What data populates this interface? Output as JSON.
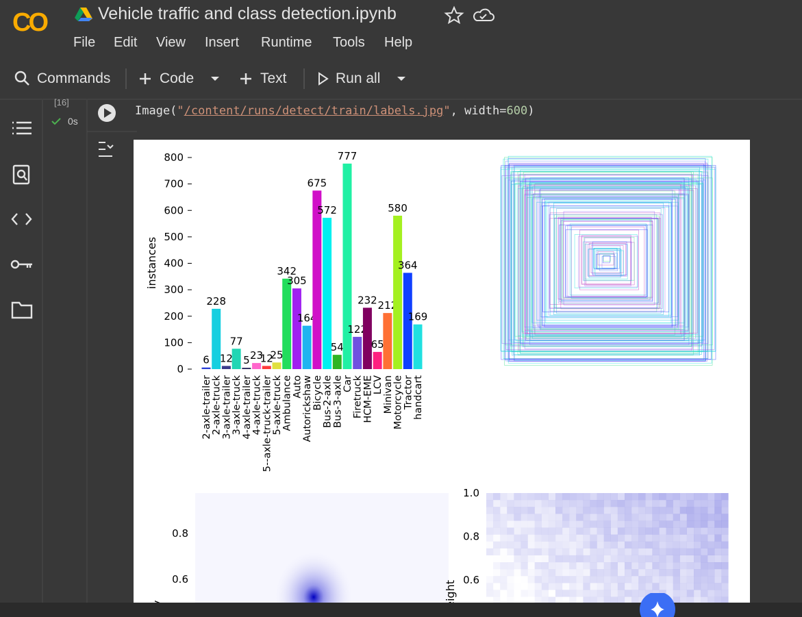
{
  "header": {
    "title": "Vehicle traffic and class detection.ipynb",
    "menu": [
      "File",
      "Edit",
      "View",
      "Insert",
      "Runtime",
      "Tools",
      "Help"
    ]
  },
  "toolbar": {
    "commands": "Commands",
    "code": "Code",
    "text": "Text",
    "run_all": "Run all"
  },
  "cell": {
    "execution_count": "[16]",
    "duration": "0s",
    "code_tokens": [
      "Image(",
      "\"",
      "/content/runs/detect/train/labels.jpg",
      "\"",
      ", width=",
      "600",
      ")"
    ]
  },
  "chart_data": {
    "type": "bar",
    "ylabel": "instances",
    "categories": [
      "2-axle-trailer",
      "2-axle-truck",
      "3-axle-trailer",
      "3-axle-truck",
      "4-axle-trailer",
      "4-axle-truck",
      "5--axle-truck-trailer",
      "5-axle-truck",
      "Ambulance",
      "Auto",
      "Autorickshaw",
      "Bicycle",
      "Bus-2-axle",
      "Bus-3-axle",
      "Car",
      "Firetruck",
      "HCM-EME",
      "LCV",
      "Minivan",
      "Motorcycle",
      "Tractor",
      "handcart"
    ],
    "values": [
      6,
      228,
      12,
      77,
      5,
      23,
      12,
      25,
      342,
      305,
      164,
      675,
      572,
      54,
      777,
      122,
      232,
      65,
      212,
      580,
      364,
      169
    ],
    "colors": [
      "#2a3fd6",
      "#16cfe0",
      "#3a3a8a",
      "#22d6b4",
      "#303060",
      "#ff66cc",
      "#ff3a3a",
      "#e0e040",
      "#22dd5c",
      "#a020f0",
      "#20b4f0",
      "#d010c8",
      "#00f0f0",
      "#2eb424",
      "#20f0a4",
      "#7050e0",
      "#800060",
      "#ff2080",
      "#ff7034",
      "#a4f020",
      "#1040ff",
      "#20e0e0"
    ],
    "ylim": [
      0,
      800
    ],
    "yticks": [
      0,
      100,
      200,
      300,
      400,
      500,
      600,
      700,
      800
    ]
  },
  "other_plots": {
    "bottom_left": {
      "ylabel": "y",
      "yticks": [
        "0.8",
        "0.6"
      ]
    },
    "bottom_right": {
      "ylabel": "height",
      "yticks": [
        "1.0",
        "0.8",
        "0.6"
      ]
    }
  }
}
